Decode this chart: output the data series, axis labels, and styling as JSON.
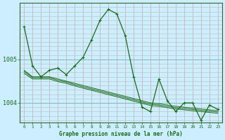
{
  "title": "Graphe pression niveau de la mer (hPa)",
  "xlabel": "Graphe pression niveau de la mer (hPa)",
  "background_color": "#cceeff",
  "plot_bg_color": "#cceeff",
  "line_color": "#1a6b1a",
  "grid_color_vert": "#b8c8c8",
  "grid_color_horiz": "#b8c8c8",
  "ylim": [
    1003.55,
    1006.3
  ],
  "yticks": [
    1004,
    1005
  ],
  "xlim": [
    -0.5,
    23.5
  ],
  "xticks": [
    0,
    1,
    2,
    3,
    4,
    5,
    6,
    7,
    8,
    9,
    10,
    11,
    12,
    13,
    14,
    15,
    16,
    17,
    18,
    19,
    20,
    21,
    22,
    23
  ],
  "series": [
    [
      1005.75,
      1004.85,
      1004.6,
      1004.75,
      1004.8,
      1004.65,
      1004.85,
      1005.05,
      1005.45,
      1005.9,
      1006.15,
      1006.05,
      1005.55,
      1004.6,
      1003.9,
      1003.8,
      1004.55,
      1004.05,
      1003.8,
      1004.0,
      1004.0,
      1003.6,
      1003.95,
      1003.85
    ],
    [
      1004.75,
      1004.6,
      1004.6,
      1004.6,
      1004.55,
      1004.5,
      1004.45,
      1004.4,
      1004.35,
      1004.3,
      1004.25,
      1004.2,
      1004.15,
      1004.1,
      1004.05,
      1004.0,
      1003.98,
      1003.95,
      1003.92,
      1003.9,
      1003.88,
      1003.86,
      1003.84,
      1003.82
    ],
    [
      1004.72,
      1004.58,
      1004.58,
      1004.58,
      1004.52,
      1004.48,
      1004.42,
      1004.37,
      1004.32,
      1004.27,
      1004.22,
      1004.17,
      1004.12,
      1004.07,
      1004.02,
      1003.97,
      1003.95,
      1003.92,
      1003.89,
      1003.87,
      1003.85,
      1003.83,
      1003.81,
      1003.79
    ],
    [
      1004.68,
      1004.55,
      1004.55,
      1004.55,
      1004.49,
      1004.45,
      1004.39,
      1004.34,
      1004.29,
      1004.24,
      1004.19,
      1004.14,
      1004.09,
      1004.04,
      1003.99,
      1003.94,
      1003.92,
      1003.89,
      1003.86,
      1003.84,
      1003.82,
      1003.8,
      1003.78,
      1003.76
    ]
  ]
}
